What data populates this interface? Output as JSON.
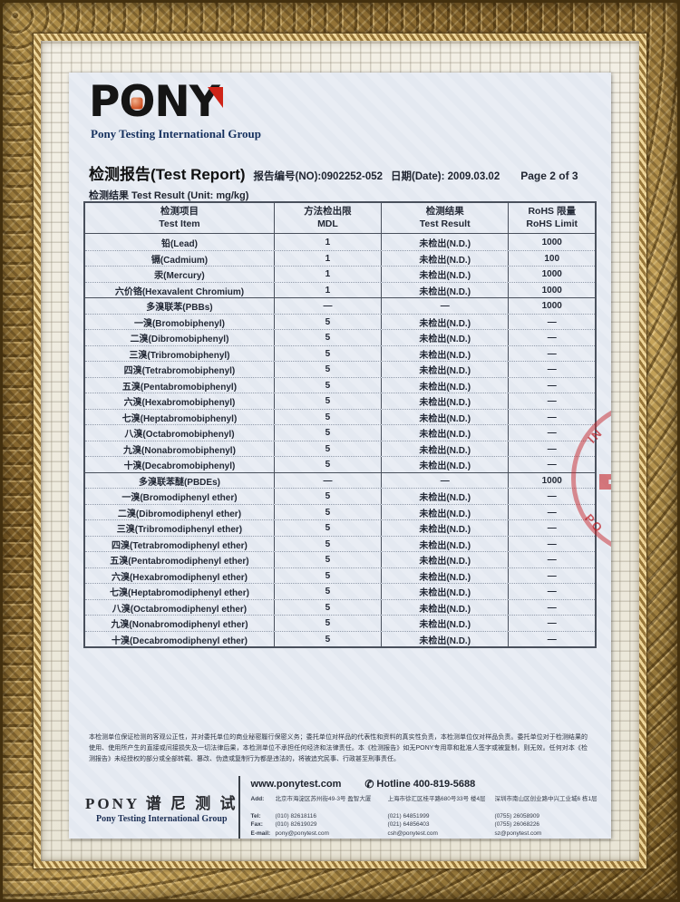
{
  "colors": {
    "accent_red": "#cf2418",
    "logo_orange": "#cc4d1f",
    "paper": "#e8ecf3",
    "frame_gold": "#a8853f",
    "stamp_red": "#c2262c"
  },
  "document": {
    "logo": {
      "p": "P",
      "o": "O",
      "n": "N",
      "y": "Y",
      "subtitle": "Pony Testing International Group"
    },
    "header": {
      "title": "检测报告(Test Report)",
      "report_no": "报告编号(NO):0902252-052",
      "date": "日期(Date): 2009.03.02",
      "page": "Page 2 of 3",
      "unit_line": "检测结果 Test Result  (Unit: mg/kg)"
    },
    "table": {
      "headers": [
        {
          "cn": "检测项目",
          "en": "Test Item"
        },
        {
          "cn": "方法检出限",
          "en": "MDL"
        },
        {
          "cn": "检测结果",
          "en": "Test Result"
        },
        {
          "cn": "RoHS 限量",
          "en": "RoHS Limit"
        }
      ],
      "rows": [
        {
          "item": "铅(Lead)",
          "mdl": "1",
          "result": "未检出(N.D.)",
          "limit": "1000",
          "section": false
        },
        {
          "item": "镉(Cadmium)",
          "mdl": "1",
          "result": "未检出(N.D.)",
          "limit": "100",
          "section": false
        },
        {
          "item": "汞(Mercury)",
          "mdl": "1",
          "result": "未检出(N.D.)",
          "limit": "1000",
          "section": false
        },
        {
          "item": "六价铬(Hexavalent Chromium)",
          "mdl": "1",
          "result": "未检出(N.D.)",
          "limit": "1000",
          "section": false
        },
        {
          "item": "多溴联苯(PBBs)",
          "mdl": "—",
          "result": "—",
          "limit": "1000",
          "section": true
        },
        {
          "item": "一溴(Bromobiphenyl)",
          "mdl": "5",
          "result": "未检出(N.D.)",
          "limit": "—",
          "section": false
        },
        {
          "item": "二溴(Dibromobiphenyl)",
          "mdl": "5",
          "result": "未检出(N.D.)",
          "limit": "—",
          "section": false
        },
        {
          "item": "三溴(Tribromobiphenyl)",
          "mdl": "5",
          "result": "未检出(N.D.)",
          "limit": "—",
          "section": false
        },
        {
          "item": "四溴(Tetrabromobiphenyl)",
          "mdl": "5",
          "result": "未检出(N.D.)",
          "limit": "—",
          "section": false
        },
        {
          "item": "五溴(Pentabromobiphenyl)",
          "mdl": "5",
          "result": "未检出(N.D.)",
          "limit": "—",
          "section": false
        },
        {
          "item": "六溴(Hexabromobiphenyl)",
          "mdl": "5",
          "result": "未检出(N.D.)",
          "limit": "—",
          "section": false
        },
        {
          "item": "七溴(Heptabromobiphenyl)",
          "mdl": "5",
          "result": "未检出(N.D.)",
          "limit": "—",
          "section": false
        },
        {
          "item": "八溴(Octabromobiphenyl)",
          "mdl": "5",
          "result": "未检出(N.D.)",
          "limit": "—",
          "section": false
        },
        {
          "item": "九溴(Nonabromobiphenyl)",
          "mdl": "5",
          "result": "未检出(N.D.)",
          "limit": "—",
          "section": false
        },
        {
          "item": "十溴(Decabromobiphenyl)",
          "mdl": "5",
          "result": "未检出(N.D.)",
          "limit": "—",
          "section": false
        },
        {
          "item": "多溴联苯醚(PBDEs)",
          "mdl": "—",
          "result": "—",
          "limit": "1000",
          "section": true
        },
        {
          "item": "一溴(Bromodiphenyl ether)",
          "mdl": "5",
          "result": "未检出(N.D.)",
          "limit": "—",
          "section": false
        },
        {
          "item": "二溴(Dibromodiphenyl ether)",
          "mdl": "5",
          "result": "未检出(N.D.)",
          "limit": "—",
          "section": false
        },
        {
          "item": "三溴(Tribromodiphenyl ether)",
          "mdl": "5",
          "result": "未检出(N.D.)",
          "limit": "—",
          "section": false
        },
        {
          "item": "四溴(Tetrabromodiphenyl ether)",
          "mdl": "5",
          "result": "未检出(N.D.)",
          "limit": "—",
          "section": false
        },
        {
          "item": "五溴(Pentabromodiphenyl ether)",
          "mdl": "5",
          "result": "未检出(N.D.)",
          "limit": "—",
          "section": false
        },
        {
          "item": "六溴(Hexabromodiphenyl ether)",
          "mdl": "5",
          "result": "未检出(N.D.)",
          "limit": "—",
          "section": false
        },
        {
          "item": "七溴(Heptabromodiphenyl ether)",
          "mdl": "5",
          "result": "未检出(N.D.)",
          "limit": "—",
          "section": false
        },
        {
          "item": "八溴(Octabromodiphenyl ether)",
          "mdl": "5",
          "result": "未检出(N.D.)",
          "limit": "—",
          "section": false
        },
        {
          "item": "九溴(Nonabromodiphenyl ether)",
          "mdl": "5",
          "result": "未检出(N.D.)",
          "limit": "—",
          "section": false
        },
        {
          "item": "十溴(Decabromodiphenyl ether)",
          "mdl": "5",
          "result": "未检出(N.D.)",
          "limit": "—",
          "section": false
        }
      ]
    },
    "stamp": {
      "fragment_top": "IN",
      "fragment_bottom": "PO"
    },
    "disclaimer": "本检测单位保证检测的客观公正性，并对委托单位的商业秘密履行保密义务；委托单位对样品的代表性和资料的真实性负责，本检测单位仅对样品负责。委托单位对于检测结果的使用、使用所产生的直接或间接损失及一切法律后果，本检测单位不承担任何经济和法律责任。本《检测报告》如无PONY专用章和批准人签字或被复制，则无效。任何对本《检测报告》未经授权的部分或全部转载、篡改、伪造或复制行为都是违法的，将被追究民事、行政甚至刑事责任。",
    "footer": {
      "brand_cn": "PONY 谱 尼 测 试",
      "brand_en": "Pony Testing International Group",
      "website": "www.ponytest.com",
      "phone_icon": "✆",
      "hotline": "Hotline 400-819-5688",
      "labels": {
        "add": "Add:",
        "tel": "Tel:",
        "fax": "Fax:",
        "email": "E-mail:"
      },
      "offices": [
        {
          "address": "北京市海淀区苏州街49-3号 盈智大厦",
          "tel": "(010) 82618116",
          "fax": "(010) 82619029",
          "email": "pony@ponytest.com"
        },
        {
          "address": "上海市徐汇区桂平路680号33号 楼4层",
          "tel": "(021) 64851999",
          "fax": "(021) 64856403",
          "email": "csh@ponytest.com"
        },
        {
          "address": "深圳市南山区创业路中兴工业城6 栋1层",
          "tel": "(0755) 26058909",
          "fax": "(0755) 26068226",
          "email": "sz@ponytest.com"
        }
      ]
    }
  }
}
